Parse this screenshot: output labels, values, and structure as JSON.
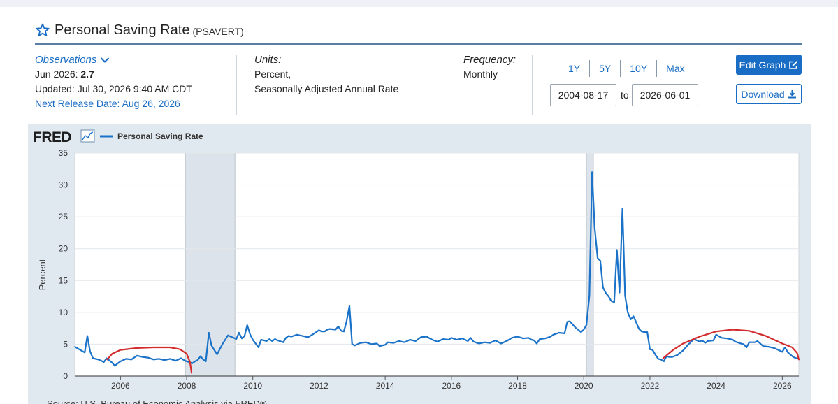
{
  "header": {
    "title": "Personal Saving Rate",
    "series_id": "(PSAVERT)"
  },
  "observations": {
    "link_label": "Observations",
    "latest_label": "Jun 2026:",
    "latest_value": "2.7",
    "updated": "Updated: Jul 30, 2026 9:40 AM CDT",
    "next_release": "Next Release Date: Aug 26, 2026"
  },
  "units": {
    "label": "Units:",
    "line1": "Percent,",
    "line2": "Seasonally Adjusted Annual Rate"
  },
  "frequency": {
    "label": "Frequency:",
    "value": "Monthly"
  },
  "range_buttons": [
    "1Y",
    "5Y",
    "10Y",
    "Max"
  ],
  "date_range": {
    "start": "2004-08-17",
    "to_label": "to",
    "end": "2026-06-01"
  },
  "buttons": {
    "edit_graph": "Edit Graph",
    "download": "Download"
  },
  "colors": {
    "accent": "#1a6dc4",
    "series": "#1a73c8",
    "annotation": "#d42c2c",
    "recession": "#dde3ea",
    "plot_bg": "#e1e9f0"
  },
  "chart_data": {
    "type": "line",
    "logo": "FRED",
    "source": "Source: U.S. Bureau of Economic Analysis via FRED®",
    "ylabel": "Percent",
    "xlim": [
      2004.62,
      2026.5
    ],
    "ylim": [
      0,
      35
    ],
    "yticks": [
      0,
      5,
      10,
      15,
      20,
      25,
      30,
      35
    ],
    "xticks": [
      2006,
      2008,
      2010,
      2012,
      2014,
      2016,
      2018,
      2020,
      2022,
      2024,
      2026
    ],
    "recessions": [
      [
        2007.96,
        2009.46
      ],
      [
        2020.08,
        2020.29
      ]
    ],
    "series": [
      {
        "name": "Personal Saving Rate",
        "points": [
          [
            2004.62,
            4.6
          ],
          [
            2004.75,
            4.2
          ],
          [
            2004.92,
            3.7
          ],
          [
            2005.0,
            6.3
          ],
          [
            2005.08,
            3.9
          ],
          [
            2005.17,
            2.8
          ],
          [
            2005.33,
            2.6
          ],
          [
            2005.5,
            2.2
          ],
          [
            2005.58,
            2.8
          ],
          [
            2005.75,
            2.1
          ],
          [
            2005.83,
            1.6
          ],
          [
            2005.92,
            2.0
          ],
          [
            2006.0,
            2.3
          ],
          [
            2006.17,
            2.7
          ],
          [
            2006.33,
            2.6
          ],
          [
            2006.5,
            3.2
          ],
          [
            2006.67,
            3.0
          ],
          [
            2006.83,
            2.9
          ],
          [
            2007.0,
            2.6
          ],
          [
            2007.17,
            2.7
          ],
          [
            2007.33,
            2.5
          ],
          [
            2007.5,
            2.7
          ],
          [
            2007.67,
            2.4
          ],
          [
            2007.83,
            2.8
          ],
          [
            2007.92,
            2.5
          ],
          [
            2008.0,
            2.3
          ],
          [
            2008.08,
            2.2
          ],
          [
            2008.17,
            2.0
          ],
          [
            2008.25,
            2.3
          ],
          [
            2008.33,
            2.5
          ],
          [
            2008.42,
            3.1
          ],
          [
            2008.5,
            2.6
          ],
          [
            2008.58,
            2.3
          ],
          [
            2008.67,
            6.8
          ],
          [
            2008.75,
            4.8
          ],
          [
            2008.92,
            3.4
          ],
          [
            2009.08,
            5.0
          ],
          [
            2009.25,
            6.4
          ],
          [
            2009.33,
            6.2
          ],
          [
            2009.42,
            6.0
          ],
          [
            2009.5,
            5.8
          ],
          [
            2009.58,
            6.8
          ],
          [
            2009.67,
            5.9
          ],
          [
            2009.75,
            6.3
          ],
          [
            2009.83,
            8.0
          ],
          [
            2009.92,
            6.5
          ],
          [
            2010.0,
            5.7
          ],
          [
            2010.17,
            4.5
          ],
          [
            2010.25,
            5.7
          ],
          [
            2010.42,
            5.5
          ],
          [
            2010.5,
            5.8
          ],
          [
            2010.58,
            5.5
          ],
          [
            2010.67,
            5.8
          ],
          [
            2010.75,
            5.6
          ],
          [
            2010.92,
            5.3
          ],
          [
            2011.0,
            6.0
          ],
          [
            2011.08,
            6.3
          ],
          [
            2011.17,
            6.2
          ],
          [
            2011.33,
            6.5
          ],
          [
            2011.5,
            6.3
          ],
          [
            2011.67,
            6.1
          ],
          [
            2011.83,
            6.6
          ],
          [
            2012.0,
            7.2
          ],
          [
            2012.08,
            7.0
          ],
          [
            2012.17,
            7.0
          ],
          [
            2012.25,
            7.3
          ],
          [
            2012.33,
            7.4
          ],
          [
            2012.5,
            7.3
          ],
          [
            2012.58,
            7.8
          ],
          [
            2012.67,
            7.1
          ],
          [
            2012.75,
            7.0
          ],
          [
            2012.83,
            8.5
          ],
          [
            2012.92,
            11.0
          ],
          [
            2013.0,
            5.0
          ],
          [
            2013.08,
            4.8
          ],
          [
            2013.25,
            5.2
          ],
          [
            2013.42,
            5.3
          ],
          [
            2013.58,
            5.0
          ],
          [
            2013.75,
            5.1
          ],
          [
            2013.83,
            4.7
          ],
          [
            2014.0,
            4.9
          ],
          [
            2014.08,
            5.3
          ],
          [
            2014.25,
            5.2
          ],
          [
            2014.42,
            5.5
          ],
          [
            2014.58,
            5.3
          ],
          [
            2014.75,
            5.7
          ],
          [
            2014.92,
            5.5
          ],
          [
            2015.08,
            6.1
          ],
          [
            2015.25,
            6.2
          ],
          [
            2015.42,
            5.7
          ],
          [
            2015.58,
            5.4
          ],
          [
            2015.75,
            5.8
          ],
          [
            2015.92,
            5.7
          ],
          [
            2016.0,
            6.0
          ],
          [
            2016.17,
            5.7
          ],
          [
            2016.33,
            5.9
          ],
          [
            2016.5,
            5.5
          ],
          [
            2016.58,
            6.0
          ],
          [
            2016.67,
            5.4
          ],
          [
            2016.83,
            5.1
          ],
          [
            2017.0,
            5.3
          ],
          [
            2017.17,
            5.2
          ],
          [
            2017.33,
            5.6
          ],
          [
            2017.5,
            5.1
          ],
          [
            2017.67,
            5.5
          ],
          [
            2017.83,
            6.0
          ],
          [
            2018.0,
            6.2
          ],
          [
            2018.17,
            5.9
          ],
          [
            2018.33,
            6.0
          ],
          [
            2018.42,
            5.7
          ],
          [
            2018.5,
            5.6
          ],
          [
            2018.58,
            5.1
          ],
          [
            2018.67,
            5.8
          ],
          [
            2018.83,
            5.9
          ],
          [
            2019.0,
            6.2
          ],
          [
            2019.08,
            6.5
          ],
          [
            2019.25,
            6.8
          ],
          [
            2019.42,
            6.7
          ],
          [
            2019.5,
            8.5
          ],
          [
            2019.58,
            8.6
          ],
          [
            2019.75,
            7.6
          ],
          [
            2019.92,
            6.9
          ],
          [
            2020.0,
            7.3
          ],
          [
            2020.08,
            8.0
          ],
          [
            2020.17,
            12.6
          ],
          [
            2020.25,
            32.0
          ],
          [
            2020.33,
            23.2
          ],
          [
            2020.42,
            18.5
          ],
          [
            2020.5,
            18.1
          ],
          [
            2020.58,
            13.9
          ],
          [
            2020.67,
            13.0
          ],
          [
            2020.75,
            12.5
          ],
          [
            2020.83,
            11.8
          ],
          [
            2020.92,
            11.6
          ],
          [
            2021.0,
            19.8
          ],
          [
            2021.08,
            13.1
          ],
          [
            2021.17,
            26.3
          ],
          [
            2021.25,
            12.6
          ],
          [
            2021.33,
            10.0
          ],
          [
            2021.42,
            8.9
          ],
          [
            2021.5,
            9.4
          ],
          [
            2021.58,
            8.5
          ],
          [
            2021.67,
            7.4
          ],
          [
            2021.75,
            7.0
          ],
          [
            2021.83,
            6.9
          ],
          [
            2021.92,
            6.9
          ],
          [
            2022.0,
            4.2
          ],
          [
            2022.08,
            4.1
          ],
          [
            2022.17,
            3.3
          ],
          [
            2022.25,
            2.7
          ],
          [
            2022.33,
            2.6
          ],
          [
            2022.42,
            2.3
          ],
          [
            2022.5,
            3.1
          ],
          [
            2022.58,
            3.0
          ],
          [
            2022.67,
            3.0
          ],
          [
            2022.83,
            3.3
          ],
          [
            2023.0,
            4.0
          ],
          [
            2023.17,
            5.0
          ],
          [
            2023.33,
            5.8
          ],
          [
            2023.5,
            5.4
          ],
          [
            2023.58,
            5.6
          ],
          [
            2023.67,
            5.2
          ],
          [
            2023.75,
            5.5
          ],
          [
            2023.92,
            5.6
          ],
          [
            2024.0,
            6.5
          ],
          [
            2024.17,
            6.0
          ],
          [
            2024.33,
            5.9
          ],
          [
            2024.5,
            5.7
          ],
          [
            2024.58,
            5.4
          ],
          [
            2024.75,
            5.1
          ],
          [
            2024.83,
            5.0
          ],
          [
            2024.92,
            4.5
          ],
          [
            2025.0,
            5.3
          ],
          [
            2025.17,
            5.3
          ],
          [
            2025.25,
            5.5
          ],
          [
            2025.42,
            4.7
          ],
          [
            2025.58,
            4.6
          ],
          [
            2025.75,
            4.4
          ],
          [
            2025.92,
            4.0
          ],
          [
            2026.0,
            3.8
          ],
          [
            2026.08,
            4.5
          ],
          [
            2026.17,
            3.7
          ],
          [
            2026.33,
            3.0
          ],
          [
            2026.42,
            2.8
          ],
          [
            2026.5,
            2.7
          ]
        ]
      }
    ],
    "annotations": [
      {
        "kind": "hand-drawn arc",
        "points": [
          [
            2005.6,
            2.6
          ],
          [
            2005.75,
            3.5
          ],
          [
            2006.0,
            4.1
          ],
          [
            2006.5,
            4.4
          ],
          [
            2007.0,
            4.5
          ],
          [
            2007.5,
            4.5
          ],
          [
            2007.8,
            4.2
          ],
          [
            2008.0,
            3.5
          ],
          [
            2008.1,
            2.2
          ],
          [
            2008.15,
            0.5
          ]
        ]
      },
      {
        "kind": "hand-drawn arc",
        "points": [
          [
            2022.4,
            2.8
          ],
          [
            2022.7,
            4.1
          ],
          [
            2023.0,
            5.1
          ],
          [
            2023.5,
            6.2
          ],
          [
            2024.0,
            7.0
          ],
          [
            2024.5,
            7.3
          ],
          [
            2025.0,
            7.1
          ],
          [
            2025.5,
            6.3
          ],
          [
            2026.0,
            5.1
          ],
          [
            2026.3,
            4.5
          ],
          [
            2026.45,
            3.6
          ],
          [
            2026.5,
            2.6
          ]
        ]
      }
    ]
  }
}
